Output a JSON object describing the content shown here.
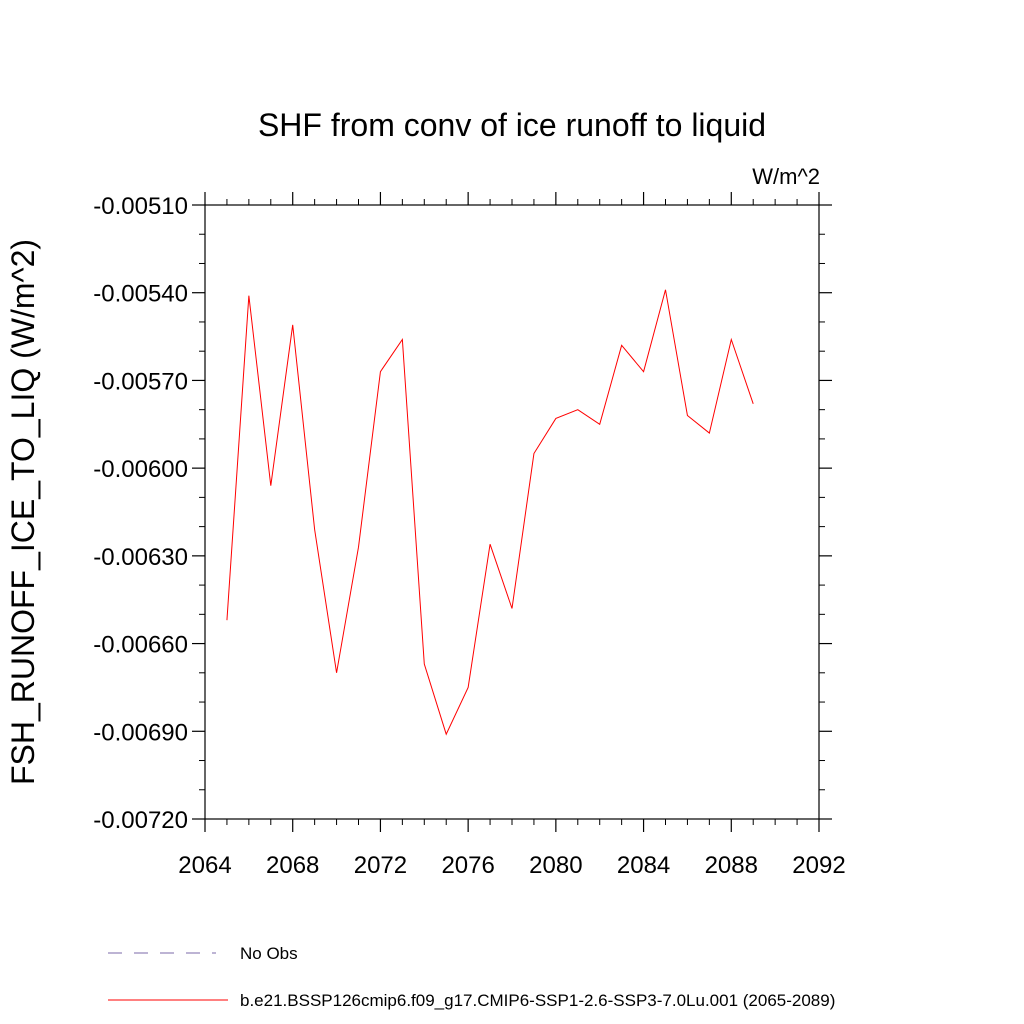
{
  "chart_data": {
    "type": "line",
    "title": "SHF from conv of ice runoff to liquid",
    "units": "W/m^2",
    "xlabel": "",
    "ylabel": "FSH_RUNOFF_ICE_TO_LIQ  (W/m^2)",
    "xlim": [
      2064,
      2092
    ],
    "ylim": [
      -0.0072,
      -0.0051
    ],
    "x_ticks": [
      2064,
      2068,
      2072,
      2076,
      2080,
      2084,
      2088,
      2092
    ],
    "x_tick_labels": [
      "2064",
      "2068",
      "2072",
      "2076",
      "2080",
      "2084",
      "2088",
      "2092"
    ],
    "y_ticks": [
      -0.0051,
      -0.0054,
      -0.0057,
      -0.006,
      -0.0063,
      -0.0066,
      -0.0069,
      -0.0072
    ],
    "y_tick_labels": [
      "-0.00510",
      "-0.00540",
      "-0.00570",
      "-0.00600",
      "-0.00630",
      "-0.00660",
      "-0.00690",
      "-0.00720"
    ],
    "grid": false,
    "legend_placement": "bottom",
    "series": [
      {
        "name": "No Obs",
        "color": "#7b68a8",
        "style": "dashed",
        "x": [],
        "y": []
      },
      {
        "name": "b.e21.BSSP126cmip6.f09_g17.CMIP6-SSP1-2.6-SSP3-7.0Lu.001 (2065-2089)",
        "color": "#ff0000",
        "style": "solid",
        "x": [
          2065,
          2066,
          2067,
          2068,
          2069,
          2070,
          2071,
          2072,
          2073,
          2074,
          2075,
          2076,
          2077,
          2078,
          2079,
          2080,
          2081,
          2082,
          2083,
          2084,
          2085,
          2086,
          2087,
          2088,
          2089
        ],
        "y": [
          -0.00652,
          -0.00541,
          -0.00606,
          -0.00551,
          -0.00621,
          -0.0067,
          -0.00627,
          -0.00567,
          -0.00556,
          -0.00667,
          -0.00691,
          -0.00675,
          -0.00626,
          -0.00648,
          -0.00595,
          -0.00583,
          -0.0058,
          -0.00585,
          -0.00558,
          -0.00567,
          -0.00539,
          -0.00582,
          -0.00588,
          -0.00556,
          -0.00578
        ]
      }
    ]
  }
}
